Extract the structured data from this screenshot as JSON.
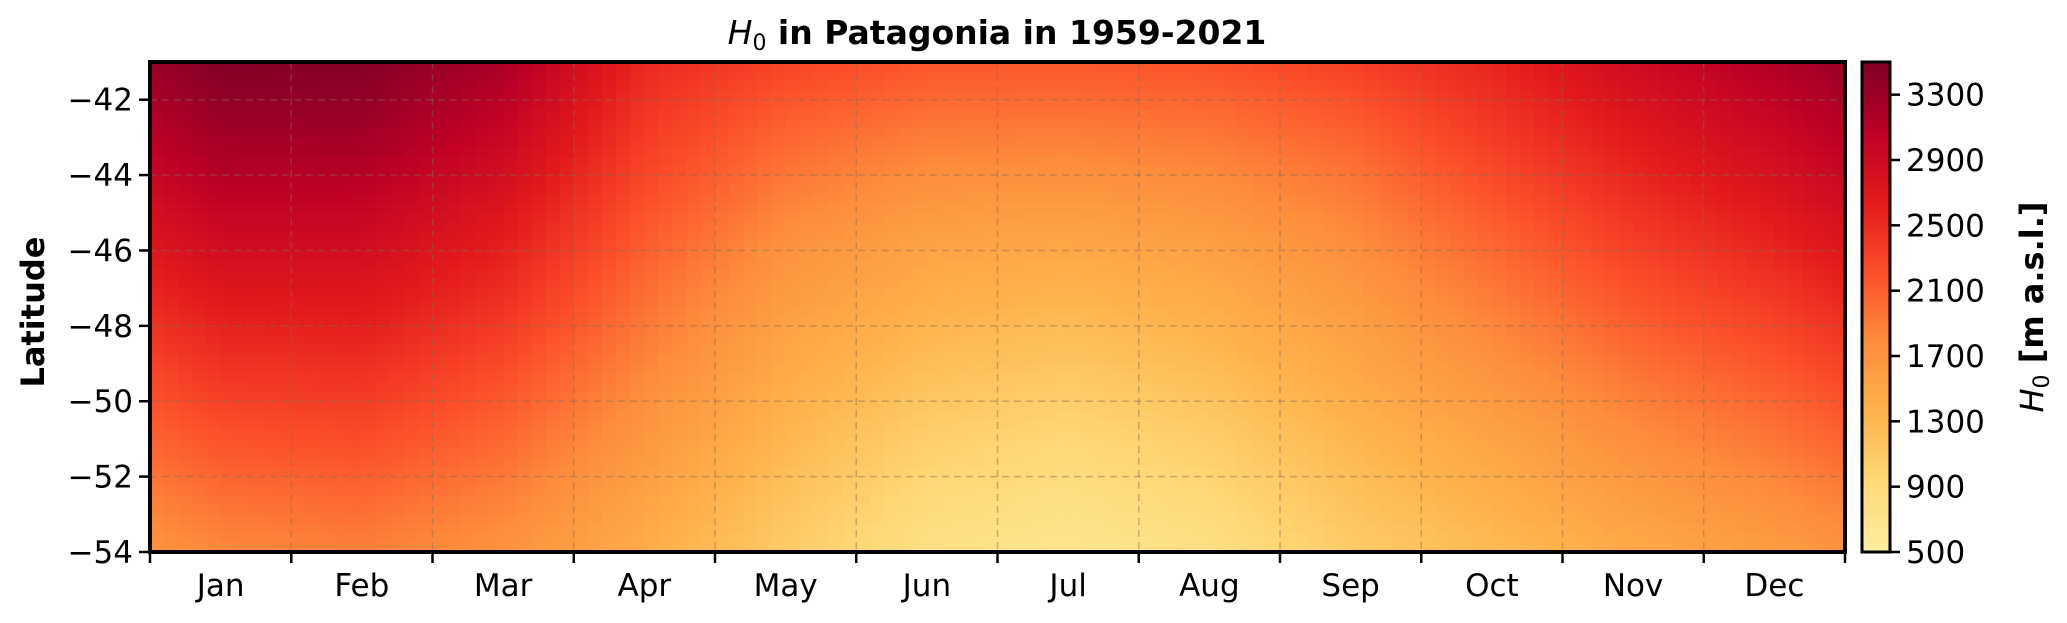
{
  "chart_data": {
    "type": "heatmap",
    "title": {
      "symbol": "H",
      "subscript": "0",
      "rest": " in Patagonia in 1959-2021"
    },
    "xlabel": "",
    "ylabel": "Latitude",
    "x": {
      "categories": [
        "Jan",
        "Feb",
        "Mar",
        "Apr",
        "May",
        "Jun",
        "Jul",
        "Aug",
        "Sep",
        "Oct",
        "Nov",
        "Dec"
      ]
    },
    "y": {
      "lim": [
        -54,
        -41
      ],
      "ticks": [
        -42,
        -44,
        -46,
        -48,
        -50,
        -52,
        -54
      ],
      "tick_labels": [
        "−42",
        "−44",
        "−46",
        "−48",
        "−50",
        "−52",
        "−54"
      ]
    },
    "colorbar": {
      "label": {
        "symbol": "H",
        "subscript": "0",
        "rest": " [m a.s.l.]"
      },
      "range": [
        500,
        3500
      ],
      "ticks": [
        500,
        900,
        1300,
        1700,
        2100,
        2500,
        2900,
        3300
      ],
      "tick_labels": [
        "500",
        "900",
        "1300",
        "1700",
        "2100",
        "2500",
        "2900",
        "3300"
      ],
      "colormap": [
        "#ffeda0",
        "#fed976",
        "#feb24c",
        "#fd8d3c",
        "#fc4e2a",
        "#e31a1c",
        "#bd0026",
        "#800026"
      ]
    },
    "grid": true,
    "latitudes": [
      -41,
      -42,
      -43,
      -44,
      -45,
      -46,
      -47,
      -48,
      -49,
      -50,
      -51,
      -52,
      -53,
      -54
    ],
    "values": [
      [
        3480,
        3460,
        3200,
        2520,
        2300,
        2170,
        2150,
        2200,
        2340,
        2550,
        2880,
        3150
      ],
      [
        3370,
        3370,
        3080,
        2440,
        2170,
        2030,
        2020,
        2060,
        2200,
        2460,
        2770,
        3030
      ],
      [
        3250,
        3250,
        2960,
        2360,
        2050,
        1900,
        1880,
        1930,
        2070,
        2360,
        2650,
        2910
      ],
      [
        3130,
        3110,
        2840,
        2280,
        1940,
        1760,
        1740,
        1800,
        1950,
        2250,
        2550,
        2790
      ],
      [
        2990,
        2980,
        2710,
        2190,
        1830,
        1640,
        1600,
        1680,
        1850,
        2140,
        2430,
        2670
      ],
      [
        2850,
        2850,
        2600,
        2100,
        1720,
        1520,
        1470,
        1560,
        1750,
        2030,
        2320,
        2550
      ],
      [
        2710,
        2720,
        2500,
        2010,
        1640,
        1430,
        1360,
        1460,
        1660,
        1930,
        2210,
        2420
      ],
      [
        2580,
        2610,
        2380,
        1930,
        1550,
        1330,
        1250,
        1360,
        1570,
        1830,
        2100,
        2300
      ],
      [
        2450,
        2480,
        2260,
        1840,
        1470,
        1230,
        1150,
        1260,
        1490,
        1730,
        1980,
        2180
      ],
      [
        2320,
        2360,
        2150,
        1750,
        1390,
        1140,
        1040,
        1160,
        1400,
        1630,
        1870,
        2060
      ],
      [
        2190,
        2240,
        2040,
        1670,
        1310,
        1040,
        940,
        1060,
        1310,
        1530,
        1770,
        1950
      ],
      [
        2060,
        2110,
        1930,
        1580,
        1230,
        950,
        850,
        970,
        1230,
        1440,
        1660,
        1830
      ],
      [
        1930,
        1990,
        1820,
        1500,
        1150,
        860,
        760,
        880,
        1150,
        1350,
        1560,
        1720
      ],
      [
        1810,
        1870,
        1720,
        1420,
        1080,
        780,
        680,
        790,
        1070,
        1260,
        1460,
        1610
      ]
    ]
  }
}
